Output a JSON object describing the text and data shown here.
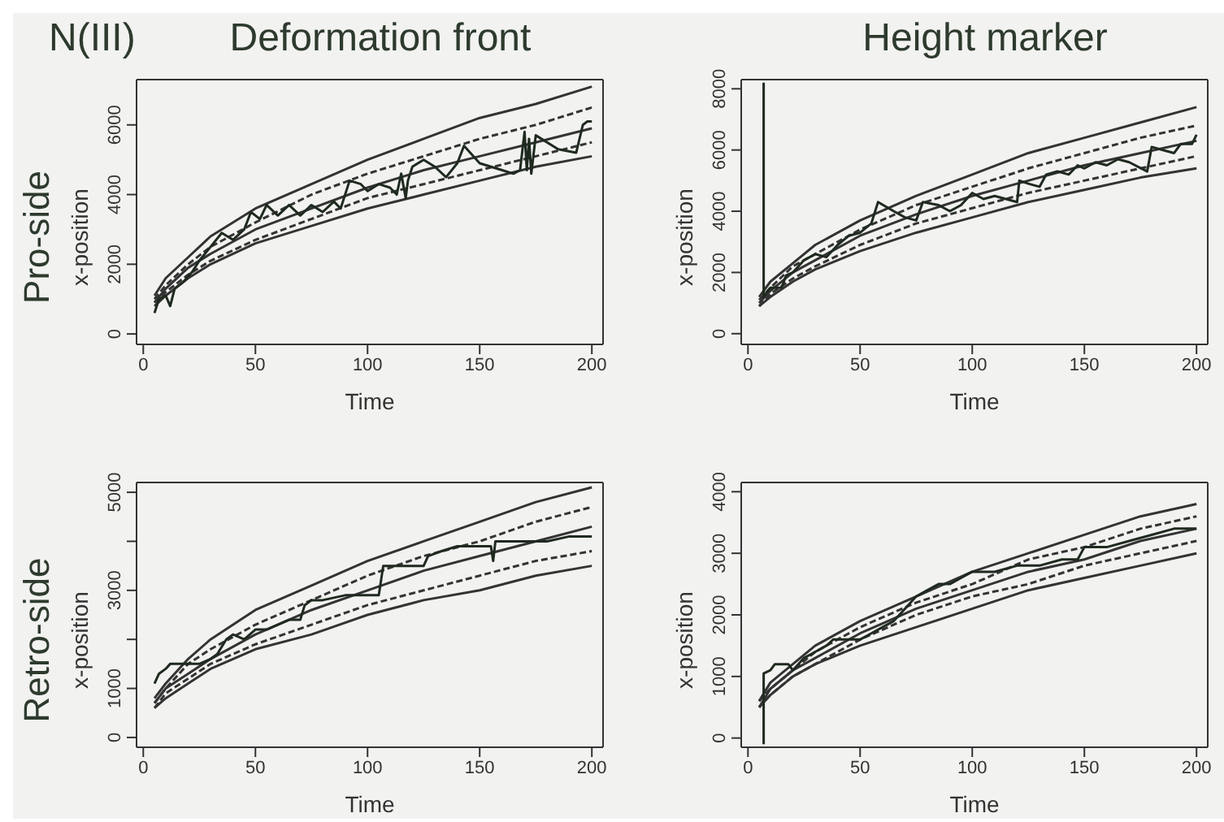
{
  "chart_data": [
    {
      "type": "line",
      "title": "Deformation front",
      "annotations": [
        "N(III)",
        "Pro-side"
      ],
      "xlabel": "Time",
      "ylabel": "x-position",
      "xlim": [
        -3,
        205
      ],
      "ylim": [
        -300,
        7300
      ],
      "xticks": [
        0,
        50,
        100,
        150,
        200
      ],
      "yticks": [
        0,
        2000,
        4000,
        6000
      ],
      "x": [
        5,
        10,
        20,
        30,
        50,
        75,
        100,
        125,
        150,
        175,
        200
      ],
      "series": [
        {
          "type": "line",
          "line_style": "solid",
          "color": "#333333",
          "values": [
            1100,
            1600,
            2200,
            2800,
            3600,
            4300,
            5000,
            5600,
            6200,
            6600,
            7100
          ]
        },
        {
          "type": "line",
          "line_style": "dashed",
          "color": "#333333",
          "values": [
            1000,
            1400,
            2000,
            2500,
            3200,
            4000,
            4600,
            5100,
            5600,
            6000,
            6500
          ]
        },
        {
          "type": "line",
          "line_style": "solid",
          "color": "#333333",
          "values": [
            900,
            1300,
            1900,
            2300,
            3000,
            3600,
            4200,
            4700,
            5100,
            5500,
            5900
          ]
        },
        {
          "type": "line",
          "line_style": "dashed",
          "color": "#333333",
          "values": [
            900,
            1200,
            1700,
            2100,
            2700,
            3300,
            3900,
            4300,
            4700,
            5100,
            5500
          ]
        },
        {
          "type": "line",
          "line_style": "solid",
          "color": "#333333",
          "values": [
            800,
            1100,
            1600,
            2000,
            2600,
            3100,
            3600,
            4000,
            4400,
            4800,
            5100
          ]
        },
        {
          "type": "line",
          "line_style": "solid",
          "color": "#1f2a1f",
          "x": [
            5,
            7,
            10,
            12,
            14,
            18,
            22,
            25,
            30,
            35,
            40,
            45,
            48,
            52,
            55,
            60,
            65,
            70,
            75,
            80,
            85,
            88,
            92,
            97,
            100,
            105,
            110,
            113,
            115,
            117,
            118,
            120,
            125,
            130,
            135,
            140,
            143,
            150,
            160,
            165,
            168,
            170,
            171,
            172,
            173,
            175,
            185,
            193,
            196,
            198,
            200
          ],
          "values": [
            600,
            1000,
            1100,
            800,
            1300,
            1500,
            1800,
            2100,
            2500,
            2900,
            2700,
            3000,
            3500,
            3300,
            3700,
            3400,
            3700,
            3400,
            3700,
            3500,
            3800,
            3600,
            4400,
            4300,
            4100,
            4300,
            4200,
            4000,
            4600,
            3900,
            4400,
            4800,
            5000,
            4800,
            4500,
            4900,
            5400,
            4900,
            4700,
            4600,
            4700,
            5800,
            4700,
            5600,
            4600,
            5700,
            5300,
            5200,
            6000,
            6100,
            6100
          ]
        }
      ]
    },
    {
      "type": "line",
      "title": "Height marker",
      "xlabel": "Time",
      "ylabel": "x-position",
      "xlim": [
        -3,
        205
      ],
      "ylim": [
        -350,
        8300
      ],
      "xticks": [
        0,
        50,
        100,
        150,
        200
      ],
      "yticks": [
        0,
        2000,
        4000,
        6000,
        8000
      ],
      "x": [
        5,
        10,
        20,
        30,
        50,
        75,
        100,
        125,
        150,
        175,
        200
      ],
      "series": [
        {
          "type": "line",
          "line_style": "solid",
          "color": "#333333",
          "values": [
            1200,
            1700,
            2300,
            2900,
            3700,
            4500,
            5200,
            5900,
            6400,
            6900,
            7400
          ]
        },
        {
          "type": "line",
          "line_style": "dashed",
          "color": "#333333",
          "values": [
            1100,
            1500,
            2200,
            2600,
            3400,
            4200,
            4800,
            5400,
            5900,
            6400,
            6800
          ]
        },
        {
          "type": "line",
          "line_style": "solid",
          "color": "#333333",
          "values": [
            1000,
            1400,
            2000,
            2400,
            3200,
            3900,
            4500,
            5000,
            5500,
            5900,
            6300
          ]
        },
        {
          "type": "line",
          "line_style": "dashed",
          "color": "#333333",
          "values": [
            900,
            1300,
            1800,
            2200,
            2900,
            3600,
            4100,
            4600,
            5000,
            5400,
            5800
          ]
        },
        {
          "type": "line",
          "line_style": "solid",
          "color": "#333333",
          "values": [
            900,
            1200,
            1700,
            2100,
            2700,
            3300,
            3800,
            4300,
            4700,
            5100,
            5400
          ]
        },
        {
          "type": "line",
          "line_style": "solid",
          "color": "#1f2a1f",
          "x": [
            7,
            7,
            10,
            15,
            17,
            20,
            25,
            30,
            35,
            40,
            45,
            50,
            55,
            58,
            65,
            70,
            75,
            78,
            85,
            90,
            95,
            100,
            105,
            110,
            120,
            121,
            125,
            130,
            133,
            138,
            143,
            147,
            150,
            155,
            160,
            165,
            170,
            178,
            180,
            185,
            190,
            193,
            198,
            200
          ],
          "values": [
            8200,
            1200,
            1500,
            1500,
            1900,
            2000,
            2400,
            2600,
            2500,
            2900,
            3200,
            3300,
            3600,
            4300,
            4000,
            3800,
            3700,
            4300,
            4200,
            4000,
            4200,
            4600,
            4400,
            4500,
            4300,
            5000,
            4900,
            4800,
            5200,
            5300,
            5200,
            5500,
            5400,
            5600,
            5500,
            5700,
            5600,
            5300,
            6100,
            6000,
            5900,
            6200,
            6200,
            6500
          ]
        }
      ]
    },
    {
      "type": "line",
      "annotations": [
        "Retro-side"
      ],
      "xlabel": "Time",
      "ylabel": "x-position",
      "xlim": [
        -3,
        205
      ],
      "ylim": [
        -200,
        5200
      ],
      "xticks": [
        0,
        50,
        100,
        150,
        200
      ],
      "yticks": [
        0,
        1000,
        {
          "value": 2000,
          "label": null
        },
        3000,
        {
          "value": 4000,
          "label": null
        },
        5000
      ],
      "x": [
        5,
        10,
        20,
        30,
        50,
        75,
        100,
        125,
        150,
        175,
        200
      ],
      "series": [
        {
          "type": "line",
          "line_style": "solid",
          "color": "#333333",
          "values": [
            800,
            1100,
            1600,
            2000,
            2600,
            3100,
            3600,
            4000,
            4400,
            4800,
            5100
          ]
        },
        {
          "type": "line",
          "line_style": "dashed",
          "color": "#333333",
          "values": [
            700,
            1000,
            1500,
            1800,
            2300,
            2800,
            3300,
            3700,
            4000,
            4400,
            4700
          ]
        },
        {
          "type": "line",
          "line_style": "solid",
          "color": "#333333",
          "values": [
            700,
            1000,
            1300,
            1600,
            2100,
            2600,
            3000,
            3400,
            3700,
            4000,
            4300
          ]
        },
        {
          "type": "line",
          "line_style": "dashed",
          "color": "#333333",
          "values": [
            600,
            900,
            1200,
            1500,
            1900,
            2300,
            2700,
            3000,
            3300,
            3600,
            3800
          ]
        },
        {
          "type": "line",
          "line_style": "solid",
          "color": "#333333",
          "values": [
            600,
            800,
            1100,
            1400,
            1800,
            2100,
            2500,
            2800,
            3000,
            3300,
            3500
          ]
        },
        {
          "type": "line",
          "line_style": "solid",
          "color": "#1f2a1f",
          "x": [
            5,
            7,
            10,
            12,
            15,
            20,
            25,
            30,
            33,
            37,
            40,
            45,
            50,
            55,
            60,
            65,
            70,
            72,
            75,
            80,
            90,
            100,
            105,
            107,
            115,
            125,
            127,
            133,
            140,
            150,
            155,
            156,
            157,
            170,
            180,
            190,
            200
          ],
          "values": [
            1100,
            1300,
            1400,
            1500,
            1500,
            1500,
            1500,
            1600,
            1700,
            2000,
            2100,
            2000,
            2200,
            2200,
            2300,
            2400,
            2400,
            2700,
            2800,
            2800,
            2900,
            2900,
            2900,
            3500,
            3500,
            3500,
            3700,
            3800,
            3900,
            3900,
            3900,
            3600,
            4000,
            4000,
            4000,
            4100,
            4100
          ]
        }
      ]
    },
    {
      "type": "line",
      "xlabel": "Time",
      "ylabel": "x-position",
      "xlim": [
        -3,
        205
      ],
      "ylim": [
        -150,
        4150
      ],
      "xticks": [
        0,
        50,
        100,
        150,
        200
      ],
      "yticks": [
        0,
        1000,
        2000,
        3000,
        4000
      ],
      "x": [
        5,
        10,
        20,
        30,
        50,
        75,
        100,
        125,
        150,
        175,
        200
      ],
      "series": [
        {
          "type": "line",
          "line_style": "solid",
          "color": "#333333",
          "values": [
            600,
            900,
            1200,
            1500,
            1900,
            2300,
            2700,
            3000,
            3300,
            3600,
            3800
          ]
        },
        {
          "type": "line",
          "line_style": "dashed",
          "color": "#333333",
          "values": [
            600,
            800,
            1100,
            1400,
            1800,
            2200,
            2500,
            2900,
            3100,
            3400,
            3600
          ]
        },
        {
          "type": "line",
          "line_style": "solid",
          "color": "#333333",
          "values": [
            500,
            800,
            1100,
            1300,
            1700,
            2100,
            2400,
            2700,
            2900,
            3200,
            3400
          ]
        },
        {
          "type": "line",
          "line_style": "dashed",
          "color": "#333333",
          "values": [
            500,
            700,
            1000,
            1200,
            1600,
            2000,
            2300,
            2500,
            2800,
            3000,
            3200
          ]
        },
        {
          "type": "line",
          "line_style": "solid",
          "color": "#333333",
          "values": [
            500,
            700,
            1000,
            1200,
            1500,
            1800,
            2100,
            2400,
            2600,
            2800,
            3000
          ]
        },
        {
          "type": "line",
          "line_style": "solid",
          "color": "#1f2a1f",
          "x": [
            7,
            7,
            10,
            12,
            18,
            20,
            25,
            30,
            35,
            38,
            45,
            50,
            55,
            60,
            65,
            70,
            75,
            80,
            85,
            90,
            95,
            100,
            110,
            120,
            130,
            140,
            147,
            150,
            160,
            170,
            180,
            190,
            200
          ],
          "values": [
            -100,
            1050,
            1100,
            1200,
            1200,
            1100,
            1300,
            1400,
            1500,
            1600,
            1600,
            1600,
            1700,
            1800,
            1900,
            2100,
            2300,
            2400,
            2500,
            2500,
            2600,
            2700,
            2700,
            2800,
            2800,
            2900,
            2900,
            3100,
            3100,
            3200,
            3300,
            3400,
            3400
          ]
        }
      ]
    }
  ]
}
